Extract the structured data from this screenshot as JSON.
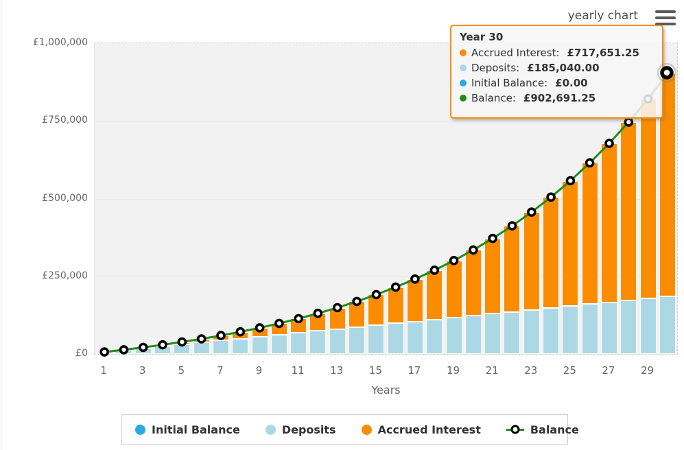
{
  "header": {
    "title": "yearly chart"
  },
  "colors": {
    "accrued_interest": "#FB8C00",
    "deposits": "#ACD8E6",
    "initial_balance": "#29ABE2",
    "balance_line": "#1F8C1A",
    "marker_stroke": "#000000",
    "plot_background": "#f2f2f2",
    "tooltip_border": "#FB8C00",
    "axis_text": "#666666"
  },
  "tooltip": {
    "title": "Year 30",
    "rows": [
      {
        "label": "Accrued Interest:",
        "value": "£717,651.25",
        "color": "#FB8C00"
      },
      {
        "label": "Deposits:",
        "value": "£185,040.00",
        "color": "#ACD8E6"
      },
      {
        "label": "Initial Balance:",
        "value": "£0.00",
        "color": "#29ABE2"
      },
      {
        "label": "Balance:",
        "value": "£902,691.25",
        "color": "#1F8C1A"
      }
    ]
  },
  "legend": {
    "items": [
      {
        "label": "Initial Balance",
        "marker": "dot",
        "color": "#29ABE2"
      },
      {
        "label": "Deposits",
        "marker": "dot",
        "color": "#ACD8E6"
      },
      {
        "label": "Accrued Interest",
        "marker": "dot",
        "color": "#FB8C00"
      },
      {
        "label": "Balance",
        "marker": "line-marker",
        "color": "#1F8C1A"
      }
    ]
  },
  "axes": {
    "y_ticks": [
      "£1,000,000",
      "£750,000",
      "£500,000",
      "£250,000",
      "£0"
    ],
    "x_ticks": [
      1,
      3,
      5,
      7,
      9,
      11,
      13,
      15,
      17,
      19,
      21,
      23,
      25,
      27,
      29
    ],
    "x_title": "Years"
  },
  "chart_data": {
    "type": "stacked-bar+line",
    "title": "yearly chart",
    "xlabel": "Years",
    "ylabel": "",
    "ylim": [
      0,
      1000000
    ],
    "grid": true,
    "legend_position": "bottom",
    "categories": [
      1,
      2,
      3,
      4,
      5,
      6,
      7,
      8,
      9,
      10,
      11,
      12,
      13,
      14,
      15,
      16,
      17,
      18,
      19,
      20,
      21,
      22,
      23,
      24,
      25,
      26,
      27,
      28,
      29,
      30
    ],
    "series": [
      {
        "name": "Initial Balance",
        "type": "bar",
        "color": "#29ABE2",
        "values": [
          0,
          0,
          0,
          0,
          0,
          0,
          0,
          0,
          0,
          0,
          0,
          0,
          0,
          0,
          0,
          0,
          0,
          0,
          0,
          0,
          0,
          0,
          0,
          0,
          0,
          0,
          0,
          0,
          0,
          0
        ]
      },
      {
        "name": "Deposits",
        "type": "bar",
        "color": "#ACD8E6",
        "values": [
          6168,
          12336,
          18504,
          24672,
          30840,
          37008,
          43176,
          49344,
          55512,
          61680,
          67848,
          74016,
          80184,
          86352,
          92520,
          98688,
          104856,
          111024,
          117192,
          123360,
          129528,
          135696,
          141864,
          148032,
          154200,
          160368,
          166536,
          172704,
          178872,
          185040
        ]
      },
      {
        "name": "Accrued Interest",
        "type": "bar",
        "color": "#FB8C00",
        "values": [
          255,
          1099,
          2586,
          4772,
          7726,
          11515,
          16216,
          21914,
          28699,
          36672,
          45941,
          56622,
          68849,
          82762,
          98514,
          116276,
          136231,
          158575,
          183536,
          211348,
          242273,
          276599,
          314636,
          356724,
          403234,
          454571,
          511177,
          573535,
          642178,
          717651.25
        ]
      },
      {
        "name": "Balance",
        "type": "line",
        "color": "#1F8C1A",
        "values": [
          6423,
          13435,
          21090,
          29444,
          38566,
          48523,
          59392,
          71258,
          84211,
          98352,
          113789,
          130638,
          149033,
          169114,
          191034,
          214964,
          241087,
          269599,
          300728,
          334708,
          371801,
          412295,
          456500,
          504756,
          557434,
          614939,
          677713,
          746239,
          821050,
          902691.25
        ]
      }
    ],
    "hovered_point": {
      "category": 30,
      "balance": 902691.25
    }
  }
}
